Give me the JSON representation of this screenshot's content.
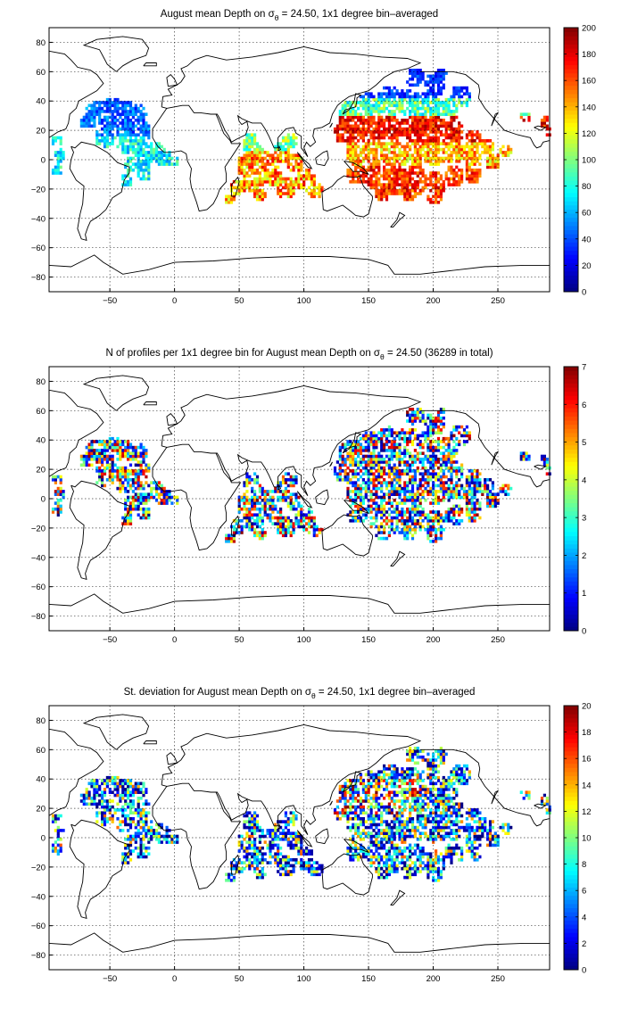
{
  "chart_data": [
    {
      "type": "heatmap",
      "title": "August mean Depth on σθ = 24.50, 1x1 degree bin–averaged",
      "title_parts": {
        "before": "August mean Depth on σ",
        "subscript": "θ",
        "after": " = 24.50, 1x1 degree bin–averaged"
      },
      "xticks": [
        -50,
        0,
        50,
        100,
        150,
        200,
        250
      ],
      "yticks": [
        -80,
        -60,
        -40,
        -20,
        0,
        20,
        40,
        60,
        80
      ],
      "xlim": [
        -97,
        290
      ],
      "ylim": [
        -90,
        90
      ],
      "grid": true,
      "colormap": "jet",
      "colorbar": {
        "min": 0,
        "max": 200,
        "ticks": [
          0,
          20,
          40,
          60,
          80,
          100,
          120,
          140,
          160,
          180,
          200
        ]
      }
    },
    {
      "type": "heatmap",
      "title": "N of profiles per 1x1 degree bin for August mean Depth on σθ = 24.50 (36289 in total)",
      "title_parts": {
        "before": "N of profiles per 1x1 degree bin for August mean Depth on σ",
        "subscript": "θ",
        "after": " = 24.50 (36289 in total)"
      },
      "xticks": [
        -50,
        0,
        50,
        100,
        150,
        200,
        250
      ],
      "yticks": [
        -80,
        -60,
        -40,
        -20,
        0,
        20,
        40,
        60,
        80
      ],
      "xlim": [
        -97,
        290
      ],
      "ylim": [
        -90,
        90
      ],
      "grid": true,
      "colormap": "jet",
      "colorbar": {
        "min": 0,
        "max": 7,
        "ticks": [
          0,
          1,
          2,
          3,
          4,
          5,
          6,
          7
        ]
      }
    },
    {
      "type": "heatmap",
      "title": "St. deviation for August mean Depth on σθ = 24.50, 1x1 degree bin–averaged",
      "title_parts": {
        "before": "St. deviation for August mean Depth on σ",
        "subscript": "θ",
        "after": " = 24.50, 1x1 degree bin–averaged"
      },
      "xticks": [
        -50,
        0,
        50,
        100,
        150,
        200,
        250
      ],
      "yticks": [
        -80,
        -60,
        -40,
        -20,
        0,
        20,
        40,
        60,
        80
      ],
      "xlim": [
        -97,
        290
      ],
      "ylim": [
        -90,
        90
      ],
      "grid": true,
      "colormap": "jet",
      "colorbar": {
        "min": 0,
        "max": 20,
        "ticks": [
          0,
          2,
          4,
          6,
          8,
          10,
          12,
          14,
          16,
          18,
          20
        ]
      }
    }
  ]
}
